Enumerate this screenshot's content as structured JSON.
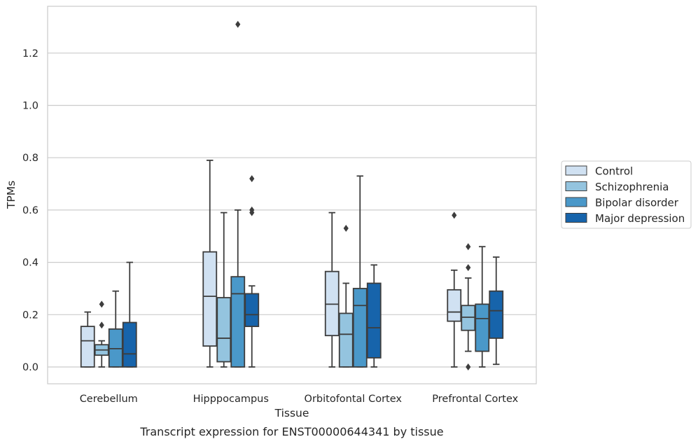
{
  "chart_data": {
    "type": "boxplot",
    "xlabel": "Tissue",
    "ylabel": "TPMs",
    "caption": "Transcript expression for ENST00000644341 by tissue",
    "ylim": [
      -0.065,
      1.375
    ],
    "yticks": [
      0.0,
      0.2,
      0.4,
      0.6,
      0.8,
      1.0,
      1.2
    ],
    "ytick_labels": [
      "0.0",
      "0.2",
      "0.4",
      "0.6",
      "0.8",
      "1.0",
      "1.2"
    ],
    "grid": "horizontal",
    "legend_position": "right",
    "categories": [
      "Cerebellum",
      "Hipppocampus",
      "Orbitofontal Cortex",
      "Prefrontal Cortex"
    ],
    "series": [
      {
        "name": "Control",
        "color": "#d0e1f2",
        "boxes": [
          {
            "whislo": 0.0,
            "q1": 0.0,
            "med": 0.1,
            "q3": 0.155,
            "whishi": 0.21,
            "fliers": []
          },
          {
            "whislo": 0.0,
            "q1": 0.08,
            "med": 0.27,
            "q3": 0.44,
            "whishi": 0.79,
            "fliers": []
          },
          {
            "whislo": 0.0,
            "q1": 0.12,
            "med": 0.24,
            "q3": 0.365,
            "whishi": 0.59,
            "fliers": []
          },
          {
            "whislo": 0.0,
            "q1": 0.175,
            "med": 0.21,
            "q3": 0.295,
            "whishi": 0.37,
            "fliers": [
              0.58
            ]
          }
        ]
      },
      {
        "name": "Schizophrenia",
        "color": "#94c4df",
        "boxes": [
          {
            "whislo": 0.0,
            "q1": 0.045,
            "med": 0.065,
            "q3": 0.085,
            "whishi": 0.1,
            "fliers": [
              0.16,
              0.24
            ]
          },
          {
            "whislo": 0.0,
            "q1": 0.02,
            "med": 0.11,
            "q3": 0.265,
            "whishi": 0.59,
            "fliers": []
          },
          {
            "whislo": 0.0,
            "q1": 0.0,
            "med": 0.125,
            "q3": 0.205,
            "whishi": 0.32,
            "fliers": [
              0.53
            ]
          },
          {
            "whislo": 0.06,
            "q1": 0.14,
            "med": 0.19,
            "q3": 0.235,
            "whishi": 0.34,
            "fliers": [
              0.38,
              0.46,
              0.0
            ]
          }
        ]
      },
      {
        "name": "Bipolar disorder",
        "color": "#4a98c9",
        "boxes": [
          {
            "whislo": 0.0,
            "q1": 0.0,
            "med": 0.07,
            "q3": 0.145,
            "whishi": 0.29,
            "fliers": []
          },
          {
            "whislo": 0.0,
            "q1": 0.0,
            "med": 0.28,
            "q3": 0.345,
            "whishi": 0.6,
            "fliers": [
              1.31
            ]
          },
          {
            "whislo": 0.0,
            "q1": 0.0,
            "med": 0.235,
            "q3": 0.3,
            "whishi": 0.73,
            "fliers": []
          },
          {
            "whislo": 0.0,
            "q1": 0.06,
            "med": 0.185,
            "q3": 0.24,
            "whishi": 0.46,
            "fliers": []
          }
        ]
      },
      {
        "name": "Major depression",
        "color": "#1764ab",
        "boxes": [
          {
            "whislo": 0.0,
            "q1": 0.0,
            "med": 0.05,
            "q3": 0.17,
            "whishi": 0.4,
            "fliers": []
          },
          {
            "whislo": 0.0,
            "q1": 0.155,
            "med": 0.2,
            "q3": 0.28,
            "whishi": 0.31,
            "fliers": [
              0.59,
              0.6,
              0.72
            ]
          },
          {
            "whislo": 0.0,
            "q1": 0.035,
            "med": 0.15,
            "q3": 0.32,
            "whishi": 0.39,
            "fliers": []
          },
          {
            "whislo": 0.01,
            "q1": 0.11,
            "med": 0.215,
            "q3": 0.29,
            "whishi": 0.42,
            "fliers": []
          }
        ]
      }
    ]
  }
}
